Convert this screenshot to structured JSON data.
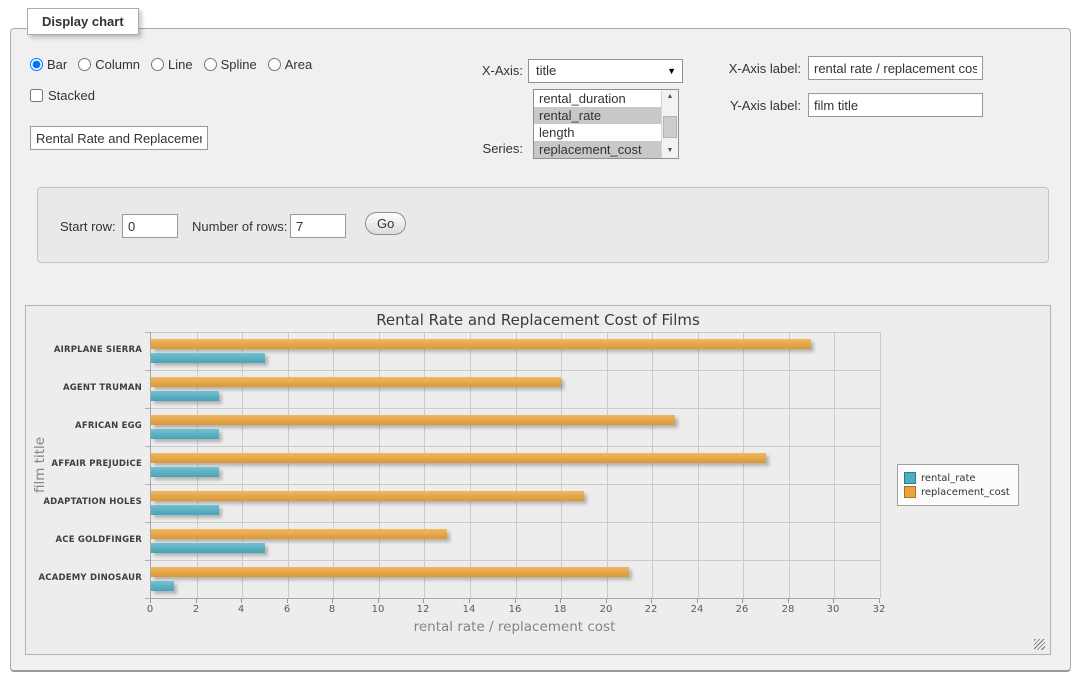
{
  "panel": {
    "legend": "Display chart"
  },
  "chart_type": {
    "options": [
      {
        "label": "Bar",
        "selected": true
      },
      {
        "label": "Column",
        "selected": false
      },
      {
        "label": "Line",
        "selected": false
      },
      {
        "label": "Spline",
        "selected": false
      },
      {
        "label": "Area",
        "selected": false
      }
    ]
  },
  "stacked": {
    "label": "Stacked",
    "checked": false
  },
  "title_input": {
    "value": "Rental Rate and Replacemer"
  },
  "x_axis": {
    "label": "X-Axis:",
    "selected": "title"
  },
  "series_select": {
    "label": "Series:",
    "options": [
      {
        "label": "rental_duration",
        "selected": false
      },
      {
        "label": "rental_rate",
        "selected": true
      },
      {
        "label": "length",
        "selected": false
      },
      {
        "label": "replacement_cost",
        "selected": true
      }
    ]
  },
  "x_axis_label": {
    "label": "X-Axis label:",
    "value": "rental rate / replacement cost"
  },
  "y_axis_label": {
    "label": "Y-Axis label:",
    "value": "film title"
  },
  "row_controls": {
    "start_row_label": "Start row:",
    "start_row_value": "0",
    "num_rows_label": "Number of rows:",
    "num_rows_value": "7",
    "go_label": "Go"
  },
  "chart_data": {
    "type": "bar",
    "title": "Rental Rate and Replacement Cost of Films",
    "categories": [
      "AIRPLANE SIERRA",
      "AGENT TRUMAN",
      "AFRICAN EGG",
      "AFFAIR PREJUDICE",
      "ADAPTATION HOLES",
      "ACE GOLDFINGER",
      "ACADEMY DINOSAUR"
    ],
    "series": [
      {
        "name": "rental_rate",
        "color": "#4DAFC4",
        "values": [
          4.99,
          2.99,
          2.99,
          2.99,
          2.99,
          4.99,
          0.99
        ]
      },
      {
        "name": "replacement_cost",
        "color": "#ECA338",
        "values": [
          28.99,
          17.99,
          22.99,
          26.99,
          18.99,
          12.99,
          20.99
        ]
      }
    ],
    "xlabel": "rental rate / replacement cost",
    "ylabel": "film title",
    "xlim": [
      0,
      32
    ],
    "x_tick_step": 2,
    "grid": true,
    "legend_position": "right"
  }
}
